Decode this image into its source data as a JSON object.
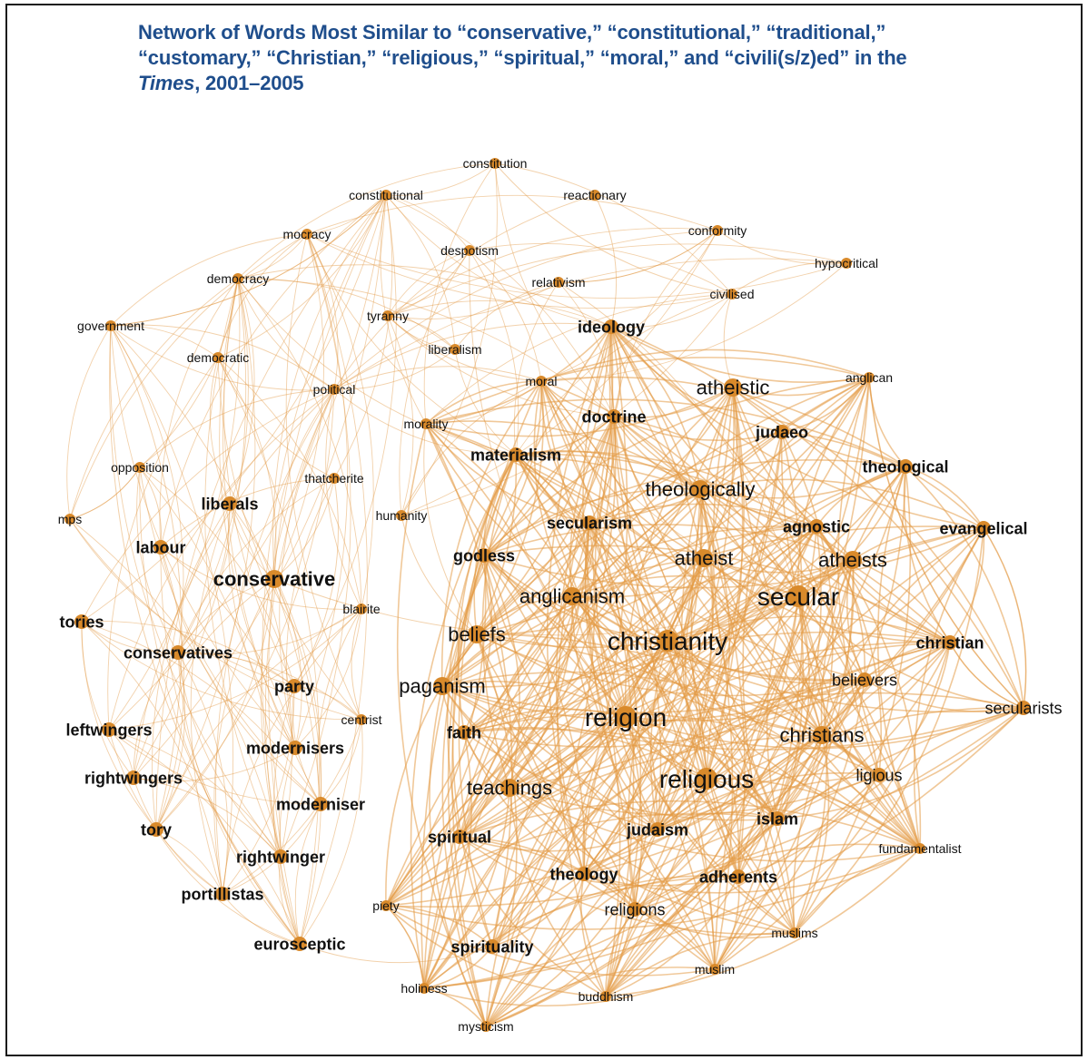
{
  "title": {
    "line1": "Network of Words Most Similar to “conservative,” “constitutional,” “traditional,”",
    "line2": "“customary,” “Christian,” “religious,” “spiritual,” “moral,” and “civili(s/z)ed” in the",
    "line3_italic": "Times",
    "line3_rest": ", 2001–2005"
  },
  "colors": {
    "node": "#d98a2b",
    "edge": "#e39a45",
    "title": "#1f4e8c"
  },
  "nodes": [
    {
      "id": "constitution",
      "label": "constitution",
      "size": "s",
      "bold": false
    },
    {
      "id": "constitutional",
      "label": "constitutional",
      "size": "s",
      "bold": false
    },
    {
      "id": "reactionary",
      "label": "reactionary",
      "size": "s",
      "bold": false
    },
    {
      "id": "mocracy",
      "label": "mocracy",
      "size": "s",
      "bold": false
    },
    {
      "id": "conformity",
      "label": "conformity",
      "size": "s",
      "bold": false
    },
    {
      "id": "despotism",
      "label": "despotism",
      "size": "s",
      "bold": false
    },
    {
      "id": "hypocritical",
      "label": "hypocritical",
      "size": "s",
      "bold": false
    },
    {
      "id": "democracy",
      "label": "democracy",
      "size": "s",
      "bold": false
    },
    {
      "id": "relativism",
      "label": "relativism",
      "size": "s",
      "bold": false
    },
    {
      "id": "civilised",
      "label": "civilised",
      "size": "s",
      "bold": false
    },
    {
      "id": "tyranny",
      "label": "tyranny",
      "size": "s",
      "bold": false
    },
    {
      "id": "government",
      "label": "government",
      "size": "s",
      "bold": false
    },
    {
      "id": "ideology",
      "label": "ideology",
      "size": "m",
      "bold": true
    },
    {
      "id": "liberalism",
      "label": "liberalism",
      "size": "s",
      "bold": false
    },
    {
      "id": "democratic",
      "label": "democratic",
      "size": "s",
      "bold": false
    },
    {
      "id": "moral",
      "label": "moral",
      "size": "s",
      "bold": false
    },
    {
      "id": "anglican",
      "label": "anglican",
      "size": "s",
      "bold": false
    },
    {
      "id": "political",
      "label": "political",
      "size": "s",
      "bold": false
    },
    {
      "id": "atheistic",
      "label": "atheistic",
      "size": "l",
      "bold": false
    },
    {
      "id": "doctrine",
      "label": "doctrine",
      "size": "m",
      "bold": true
    },
    {
      "id": "morality",
      "label": "morality",
      "size": "s",
      "bold": false
    },
    {
      "id": "judaeo",
      "label": "judaeo",
      "size": "m",
      "bold": true
    },
    {
      "id": "materialism",
      "label": "materialism",
      "size": "m",
      "bold": true
    },
    {
      "id": "opposition",
      "label": "opposition",
      "size": "s",
      "bold": false
    },
    {
      "id": "thatcherite",
      "label": "thatcherite",
      "size": "s",
      "bold": false
    },
    {
      "id": "theological",
      "label": "theological",
      "size": "m",
      "bold": true
    },
    {
      "id": "theologically",
      "label": "theologically",
      "size": "l",
      "bold": false
    },
    {
      "id": "liberals",
      "label": "liberals",
      "size": "m",
      "bold": true
    },
    {
      "id": "humanity",
      "label": "humanity",
      "size": "s",
      "bold": false
    },
    {
      "id": "mps",
      "label": "mps",
      "size": "s",
      "bold": false
    },
    {
      "id": "secularism",
      "label": "secularism",
      "size": "m",
      "bold": true
    },
    {
      "id": "agnostic",
      "label": "agnostic",
      "size": "m",
      "bold": true
    },
    {
      "id": "evangelical",
      "label": "evangelical",
      "size": "m",
      "bold": true
    },
    {
      "id": "labour",
      "label": "labour",
      "size": "m",
      "bold": true
    },
    {
      "id": "godless",
      "label": "godless",
      "size": "m",
      "bold": true
    },
    {
      "id": "atheist",
      "label": "atheist",
      "size": "l",
      "bold": false
    },
    {
      "id": "atheists",
      "label": "atheists",
      "size": "l",
      "bold": false
    },
    {
      "id": "conservative",
      "label": "conservative",
      "size": "l",
      "bold": true
    },
    {
      "id": "secular",
      "label": "secular",
      "size": "xl",
      "bold": false
    },
    {
      "id": "anglicanism",
      "label": "anglicanism",
      "size": "l",
      "bold": false
    },
    {
      "id": "blairite",
      "label": "blairite",
      "size": "s",
      "bold": false
    },
    {
      "id": "tories",
      "label": "tories",
      "size": "m",
      "bold": true
    },
    {
      "id": "beliefs",
      "label": "beliefs",
      "size": "l",
      "bold": false
    },
    {
      "id": "christianity",
      "label": "christianity",
      "size": "xl",
      "bold": false
    },
    {
      "id": "christian",
      "label": "christian",
      "size": "m",
      "bold": true
    },
    {
      "id": "conservatives",
      "label": "conservatives",
      "size": "m",
      "bold": true
    },
    {
      "id": "believers",
      "label": "believers",
      "size": "m",
      "bold": false
    },
    {
      "id": "party",
      "label": "party",
      "size": "m",
      "bold": true
    },
    {
      "id": "paganism",
      "label": "paganism",
      "size": "l",
      "bold": false
    },
    {
      "id": "secularists",
      "label": "secularists",
      "size": "m",
      "bold": false
    },
    {
      "id": "religion",
      "label": "religion",
      "size": "xl",
      "bold": false
    },
    {
      "id": "centrist",
      "label": "centrist",
      "size": "s",
      "bold": false
    },
    {
      "id": "leftwingers",
      "label": "leftwingers",
      "size": "m",
      "bold": true
    },
    {
      "id": "faith",
      "label": "faith",
      "size": "m",
      "bold": true
    },
    {
      "id": "christians",
      "label": "christians",
      "size": "l",
      "bold": false
    },
    {
      "id": "modernisers",
      "label": "modernisers",
      "size": "m",
      "bold": true
    },
    {
      "id": "rightwingers",
      "label": "rightwingers",
      "size": "m",
      "bold": true
    },
    {
      "id": "ligious",
      "label": "ligious",
      "size": "m",
      "bold": false
    },
    {
      "id": "teachings",
      "label": "teachings",
      "size": "l",
      "bold": false
    },
    {
      "id": "religious",
      "label": "religious",
      "size": "xl",
      "bold": false
    },
    {
      "id": "moderniser",
      "label": "moderniser",
      "size": "m",
      "bold": true
    },
    {
      "id": "islam",
      "label": "islam",
      "size": "m",
      "bold": true
    },
    {
      "id": "tory",
      "label": "tory",
      "size": "m",
      "bold": true
    },
    {
      "id": "spiritual",
      "label": "spiritual",
      "size": "m",
      "bold": true
    },
    {
      "id": "judaism",
      "label": "judaism",
      "size": "m",
      "bold": true
    },
    {
      "id": "fundamentalist",
      "label": "fundamentalist",
      "size": "s",
      "bold": false
    },
    {
      "id": "rightwinger",
      "label": "rightwinger",
      "size": "m",
      "bold": true
    },
    {
      "id": "theology",
      "label": "theology",
      "size": "m",
      "bold": true
    },
    {
      "id": "adherents",
      "label": "adherents",
      "size": "m",
      "bold": true
    },
    {
      "id": "portillistas",
      "label": "portillistas",
      "size": "m",
      "bold": true
    },
    {
      "id": "religions",
      "label": "religions",
      "size": "m",
      "bold": false
    },
    {
      "id": "piety",
      "label": "piety",
      "size": "s",
      "bold": false
    },
    {
      "id": "muslims",
      "label": "muslims",
      "size": "s",
      "bold": false
    },
    {
      "id": "eurosceptic",
      "label": "eurosceptic",
      "size": "m",
      "bold": true
    },
    {
      "id": "spirituality",
      "label": "spirituality",
      "size": "m",
      "bold": true
    },
    {
      "id": "muslim",
      "label": "muslim",
      "size": "s",
      "bold": false
    },
    {
      "id": "holiness",
      "label": "holiness",
      "size": "s",
      "bold": false
    },
    {
      "id": "buddhism",
      "label": "buddhism",
      "size": "s",
      "bold": false
    },
    {
      "id": "mysticism",
      "label": "mysticism",
      "size": "s",
      "bold": false
    }
  ]
}
